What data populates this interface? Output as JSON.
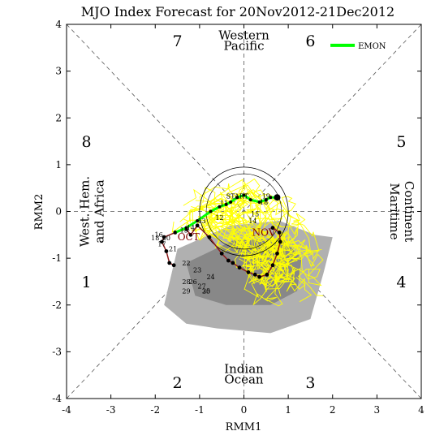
{
  "chart_data": {
    "type": "scatter",
    "title": "MJO Index Forecast for 20Nov2012-21Dec2012",
    "xlabel": "RMM1",
    "ylabel": "RMM2",
    "xlim": [
      -4,
      4
    ],
    "ylim": [
      -4,
      4
    ],
    "x_ticks": [
      "-4",
      "-3",
      "-2",
      "-1",
      "0",
      "1",
      "2",
      "3",
      "4"
    ],
    "y_ticks": [
      "-4",
      "-3",
      "-2",
      "-1",
      "0",
      "1",
      "2",
      "3",
      "4"
    ],
    "phase_labels": [
      {
        "text": "7",
        "x": -1.5,
        "y": 3.65
      },
      {
        "text": "6",
        "x": 1.5,
        "y": 3.65
      },
      {
        "text": "8",
        "x": -3.55,
        "y": 1.5
      },
      {
        "text": "5",
        "x": 3.55,
        "y": 1.5
      },
      {
        "text": "1",
        "x": -3.55,
        "y": -1.5
      },
      {
        "text": "4",
        "x": 3.55,
        "y": -1.5
      },
      {
        "text": "2",
        "x": -1.5,
        "y": -3.65
      },
      {
        "text": "3",
        "x": 1.5,
        "y": -3.65
      }
    ],
    "regions": {
      "top": [
        "Western",
        "Pacific"
      ],
      "bottom": [
        "Indian",
        "Ocean"
      ],
      "left": [
        "West. Hem.",
        "and Africa"
      ],
      "right": [
        "Maritime",
        "Continent"
      ]
    },
    "legend": {
      "label": "EMON",
      "color": "#00ff00",
      "placement": "top-right"
    },
    "month_labels": [
      {
        "text": "OCT",
        "x": -1.25,
        "y": -0.62
      },
      {
        "text": "NOV",
        "x": 0.45,
        "y": -0.52
      }
    ],
    "colors": {
      "observed": "#000000",
      "observed_path": "#8b1a1a",
      "ensemble": "#ffff00",
      "ensemble_edge": "#cccc00",
      "spread_outer": "#b0b0b0",
      "spread_inner": "#888888",
      "ensemble_mean": "#00ff00",
      "ensemble_mean_dots": "#000000",
      "grid": "#555555"
    },
    "observed": {
      "x": [
        -1.58,
        -1.68,
        -1.75,
        -1.85,
        -1.8,
        -1.55,
        -1.3,
        -1.2,
        -1.05,
        -0.78,
        -0.5,
        -0.35,
        -0.25,
        -0.1,
        0.1,
        0.25,
        0.35,
        0.52,
        0.65,
        0.75,
        0.82,
        0.8,
        0.65
      ],
      "y": [
        -1.15,
        -1.1,
        -0.85,
        -0.65,
        -0.55,
        -0.45,
        -0.38,
        -0.5,
        -0.3,
        -0.55,
        -0.9,
        -1.05,
        -1.1,
        -1.2,
        -1.3,
        -1.35,
        -1.4,
        -1.35,
        -1.15,
        -0.9,
        -0.65,
        -0.45,
        -0.35
      ],
      "labels": [
        {
          "text": "16",
          "x": -1.92,
          "y": -0.55
        },
        {
          "text": "18",
          "x": -2.0,
          "y": -0.62
        },
        {
          "text": "17",
          "x": -1.85,
          "y": -0.75
        },
        {
          "text": "20",
          "x": -1.75,
          "y": -0.62
        },
        {
          "text": "21",
          "x": -1.6,
          "y": -0.85
        }
      ]
    },
    "ensemble_mean": {
      "x": [
        -1.55,
        -1.3,
        -1.05,
        -0.75,
        -0.55,
        -0.4,
        -0.3,
        -0.15,
        0.0,
        0.15,
        0.35,
        0.5,
        0.6,
        0.75
      ],
      "y": [
        -0.45,
        -0.35,
        -0.2,
        0.0,
        0.1,
        0.15,
        0.2,
        0.3,
        0.35,
        0.25,
        0.2,
        0.25,
        0.3,
        0.3
      ],
      "labels": [
        {
          "text": "START",
          "x": -0.15,
          "y": 0.28
        },
        {
          "text": "11",
          "x": -0.45,
          "y": 0.12
        },
        {
          "text": "12",
          "x": -0.55,
          "y": -0.18
        },
        {
          "text": "13",
          "x": -0.95,
          "y": -0.25
        },
        {
          "text": "14",
          "x": -1.2,
          "y": -0.4
        },
        {
          "text": "15",
          "x": -1.35,
          "y": -0.45
        },
        {
          "text": "19",
          "x": 0.5,
          "y": 0.28
        },
        {
          "text": "18",
          "x": 0.45,
          "y": 0.15
        },
        {
          "text": "15",
          "x": 0.25,
          "y": -0.1
        },
        {
          "text": "14",
          "x": 0.2,
          "y": -0.25
        }
      ]
    },
    "ensemble_members": 30,
    "day_labels_lower": [
      {
        "text": "22",
        "x": -1.3,
        "y": -1.15
      },
      {
        "text": "23",
        "x": -1.05,
        "y": -1.3
      },
      {
        "text": "24",
        "x": -0.75,
        "y": -1.45
      },
      {
        "text": "25",
        "x": -0.85,
        "y": -1.75
      },
      {
        "text": "26",
        "x": -1.15,
        "y": -1.55
      },
      {
        "text": "27",
        "x": -0.95,
        "y": -1.65
      },
      {
        "text": "28",
        "x": -1.3,
        "y": -1.55
      },
      {
        "text": "29",
        "x": -1.3,
        "y": -1.75
      },
      {
        "text": "30",
        "x": -0.85,
        "y": -1.75
      }
    ],
    "grid": true
  }
}
